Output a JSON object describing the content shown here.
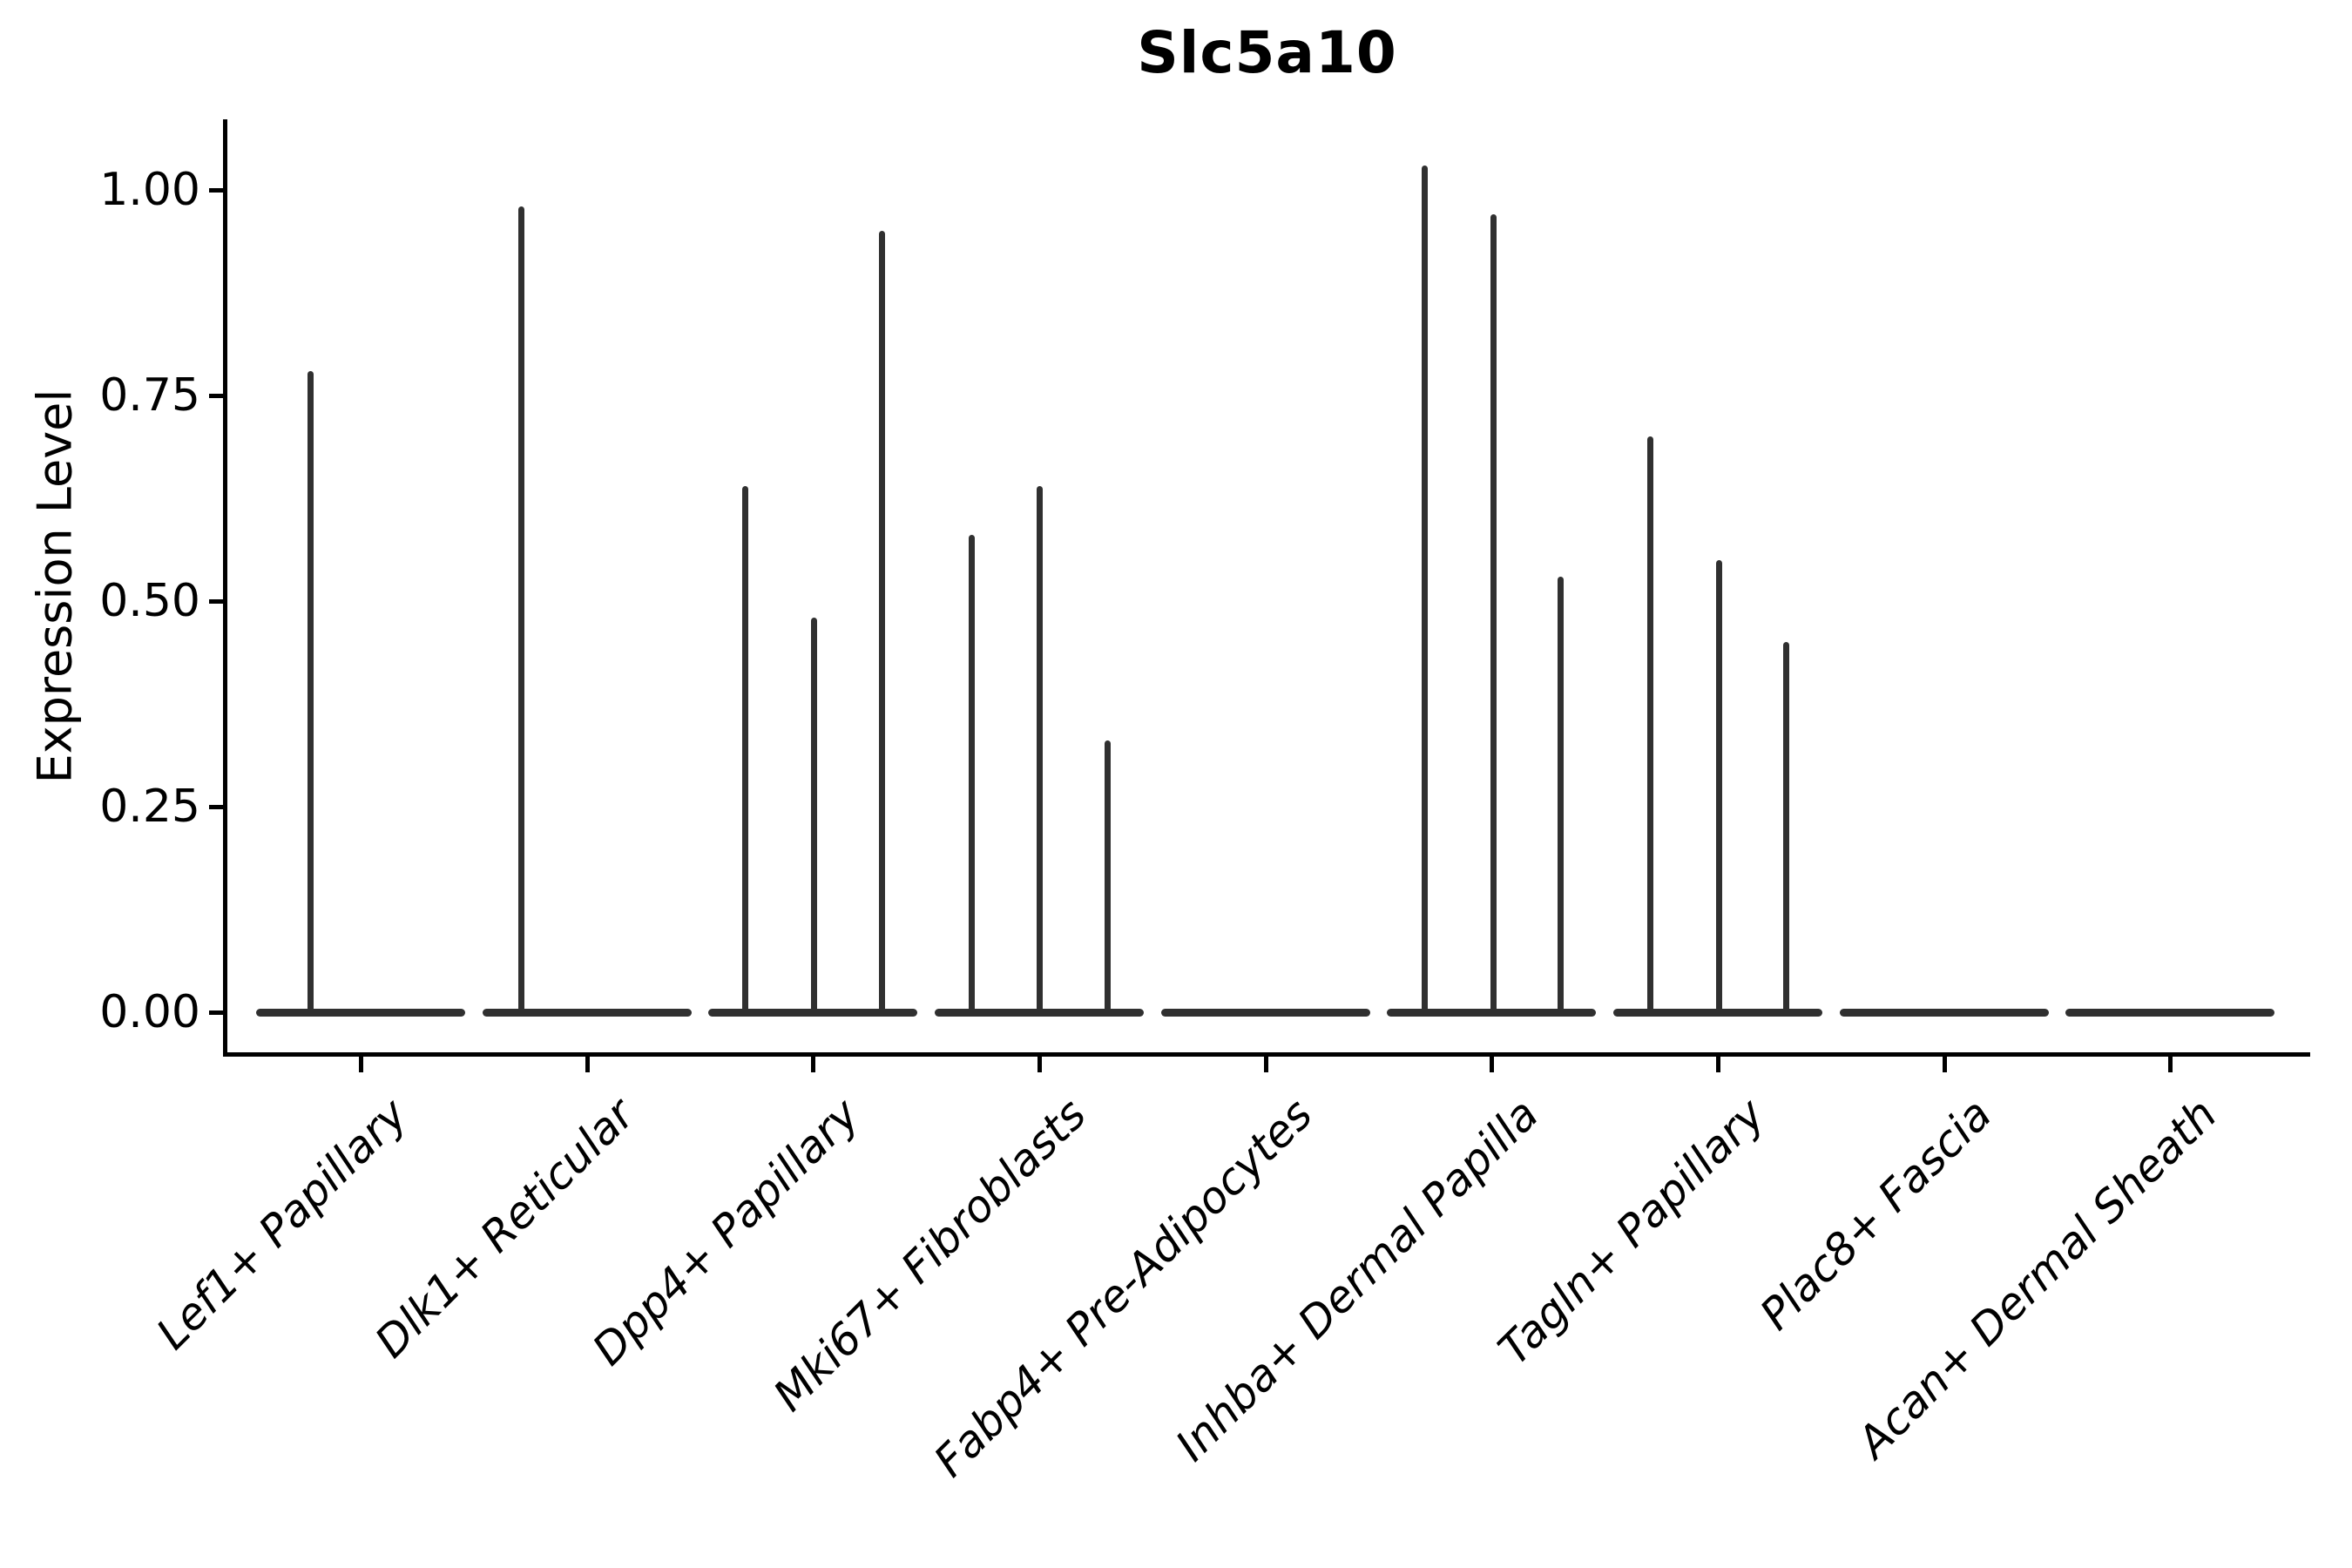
{
  "chart_data": {
    "type": "violin",
    "title": "Slc5a10",
    "ylabel": "Expression Level",
    "xlabel": "",
    "ylim": [
      0,
      1.08
    ],
    "grid": false,
    "legend": false,
    "yticks": [
      {
        "label": "0.00",
        "value": 0.0
      },
      {
        "label": "0.25",
        "value": 0.25
      },
      {
        "label": "0.50",
        "value": 0.5
      },
      {
        "label": "0.75",
        "value": 0.75
      },
      {
        "label": "1.00",
        "value": 1.0
      }
    ],
    "categories": [
      {
        "label": "Lef1+ Papillary",
        "spikes": [
          {
            "value": 0.78,
            "dx": -58
          }
        ]
      },
      {
        "label": "Dlk1+ Reticular",
        "spikes": [
          {
            "value": 0.98,
            "dx": -76
          }
        ]
      },
      {
        "label": "Dpp4+ Papillary",
        "spikes": [
          {
            "value": 0.64,
            "dx": -78
          },
          {
            "value": 0.48,
            "dx": 1
          },
          {
            "value": 0.95,
            "dx": 79
          }
        ]
      },
      {
        "label": "Mki67+ Fibroblasts",
        "spikes": [
          {
            "value": 0.58,
            "dx": -78
          },
          {
            "value": 0.64,
            "dx": 0
          },
          {
            "value": 0.33,
            "dx": 78
          }
        ]
      },
      {
        "label": "Fabp4+ Pre-Adipocytes",
        "spikes": []
      },
      {
        "label": "Inhba+ Dermal Papilla",
        "spikes": [
          {
            "value": 1.03,
            "dx": -77
          },
          {
            "value": 0.97,
            "dx": 2
          },
          {
            "value": 0.53,
            "dx": 79
          }
        ]
      },
      {
        "label": "Tagln+ Papillary",
        "spikes": [
          {
            "value": 0.7,
            "dx": -78
          },
          {
            "value": 0.55,
            "dx": 1
          },
          {
            "value": 0.45,
            "dx": 78
          }
        ]
      },
      {
        "label": "Plac8+ Fascia",
        "spikes": []
      },
      {
        "label": "Acan+ Dermal Sheath",
        "spikes": []
      }
    ],
    "colors": {
      "violin": "#303030",
      "axis": "#000000",
      "text": "#000000",
      "background": "#ffffff"
    }
  }
}
